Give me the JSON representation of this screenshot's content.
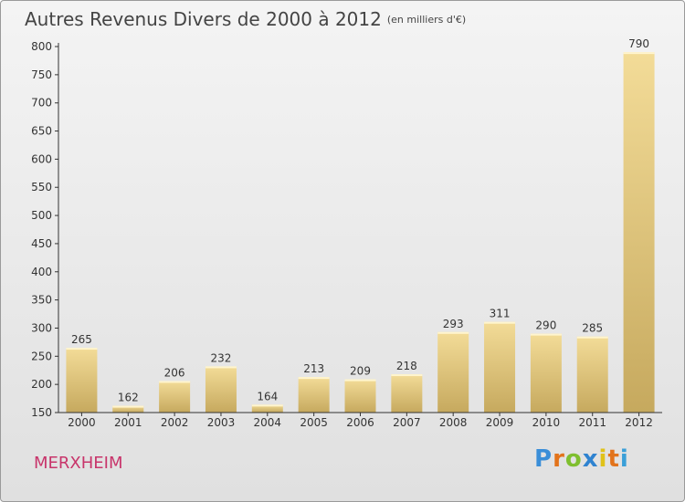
{
  "header": {
    "title": "Autres Revenus Divers de 2000 à 2012",
    "unit": "(en milliers d'€)"
  },
  "footer": {
    "city": "MERXHEIM",
    "logo_letters": [
      "P",
      "r",
      "o",
      "x",
      "i",
      "t",
      "i"
    ]
  },
  "colors": {
    "bar_light": "#f3dc98",
    "bar_dark": "#c6a95e",
    "city": "#c8356b",
    "axis": "#333333"
  },
  "chart_data": {
    "type": "bar",
    "title": "Autres Revenus Divers de 2000 à 2012",
    "ylim": [
      150,
      800
    ],
    "yticks": [
      150,
      200,
      250,
      300,
      350,
      400,
      450,
      500,
      550,
      600,
      650,
      700,
      750,
      800
    ],
    "categories": [
      "2000",
      "2001",
      "2002",
      "2003",
      "2004",
      "2005",
      "2006",
      "2007",
      "2008",
      "2009",
      "2010",
      "2011",
      "2012"
    ],
    "values": [
      265,
      162,
      206,
      232,
      164,
      213,
      209,
      218,
      293,
      311,
      290,
      285,
      790
    ],
    "grid": false,
    "legend": "none"
  }
}
